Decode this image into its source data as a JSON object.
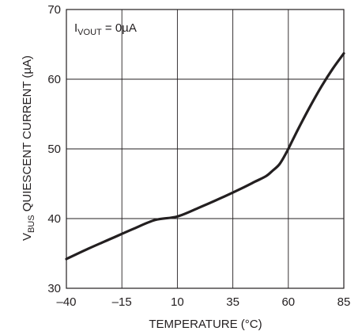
{
  "chart_data": {
    "type": "line",
    "annotation": {
      "prefix": "I",
      "subscript": "VOUT",
      "suffix": " = 0µA"
    },
    "xlabel": "TEMPERATURE (°C)",
    "ylabel": {
      "prefix": "V",
      "subscript": "BUS",
      "suffix": " QUIESCENT CURRENT (µA)"
    },
    "xlim": [
      -40,
      85
    ],
    "ylim": [
      30,
      70
    ],
    "x_ticks": [
      -40,
      -15,
      10,
      35,
      60,
      85
    ],
    "x_tick_labels": [
      "–40",
      "–15",
      "10",
      "35",
      "60",
      "85"
    ],
    "y_ticks": [
      30,
      40,
      50,
      60,
      70
    ],
    "y_tick_labels": [
      "30",
      "40",
      "50",
      "60",
      "70"
    ],
    "grid": true,
    "series": [
      {
        "color": "#231f20",
        "x": [
          -40,
          -30,
          -20,
          -10,
          0,
          10,
          20,
          30,
          40,
          45,
          50,
          53,
          56,
          59,
          62,
          65,
          70,
          75,
          80,
          85
        ],
        "y": [
          34.2,
          35.7,
          37.1,
          38.5,
          39.8,
          40.3,
          41.6,
          43.0,
          44.5,
          45.3,
          46.1,
          46.9,
          47.8,
          49.4,
          51.3,
          53.2,
          56.2,
          59.0,
          61.5,
          63.7
        ]
      }
    ]
  }
}
